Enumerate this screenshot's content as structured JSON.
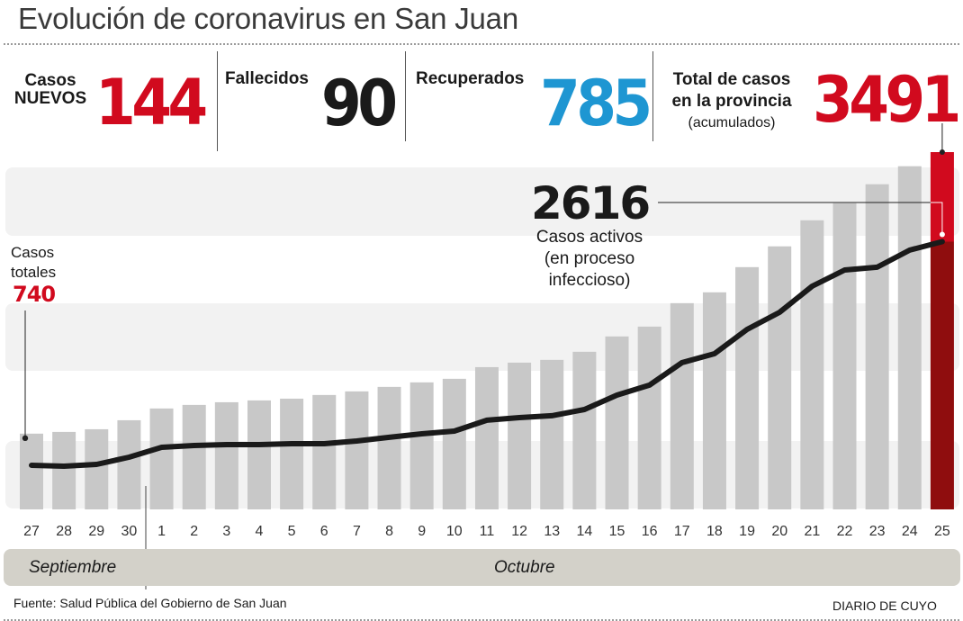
{
  "title": "Evolución de coronavirus en San Juan",
  "kpis": {
    "nuevos": {
      "label_line1": "Casos",
      "label_line2": "NUEVOS",
      "value": "144",
      "color": "#d10a1e"
    },
    "fallecidos": {
      "label": "Fallecidos",
      "value": "90",
      "color": "#1a1a1a"
    },
    "recuperados": {
      "label": "Recuperados",
      "value": "785",
      "color": "#1e96d2"
    },
    "total": {
      "label_line1": "Total de casos",
      "label_line2": "en la provincia",
      "label_line3": "(acumulados)",
      "value": "3491",
      "color": "#d10a1e"
    }
  },
  "annotations": {
    "first_total": {
      "line1": "Casos",
      "line2": "totales",
      "value": "740"
    },
    "active": {
      "value": "2616",
      "line1": "Casos activos",
      "line2": "(en proceso",
      "line3": "infeccioso)"
    }
  },
  "months": {
    "sept": "Septiembre",
    "oct": "Octubre"
  },
  "footer": {
    "source": "Fuente: Salud Pública del Gobierno de San Juan",
    "brand": "DIARIO DE CUYO"
  },
  "colors": {
    "bar": "#c8c8c8",
    "highlight_bar_top": "#d10a1e",
    "highlight_bar_bottom": "#8f0d0e",
    "line": "#1a1a1a",
    "band": "#f2f2f2"
  },
  "chart_data": {
    "type": "bar",
    "title": "Evolución de coronavirus en San Juan",
    "xlabel": "",
    "ylabel": "",
    "grid": false,
    "legend": "none",
    "ylim": [
      0,
      3491
    ],
    "categories": [
      "27",
      "28",
      "29",
      "30",
      "1",
      "2",
      "3",
      "4",
      "5",
      "6",
      "7",
      "8",
      "9",
      "10",
      "11",
      "12",
      "13",
      "14",
      "15",
      "16",
      "17",
      "18",
      "19",
      "20",
      "21",
      "22",
      "23",
      "24",
      "25"
    ],
    "series": [
      {
        "name": "Casos totales",
        "type": "bar",
        "values": [
          740,
          757,
          783,
          871,
          986,
          1021,
          1047,
          1065,
          1082,
          1118,
          1153,
          1197,
          1241,
          1276,
          1390,
          1434,
          1461,
          1540,
          1690,
          1786,
          2015,
          2121,
          2367,
          2570,
          2825,
          2992,
          3177,
          3353,
          3491
        ]
      },
      {
        "name": "Casos activos",
        "type": "line",
        "values": [
          431,
          422,
          440,
          510,
          607,
          624,
          633,
          633,
          642,
          642,
          668,
          704,
          739,
          765,
          871,
          897,
          915,
          976,
          1117,
          1214,
          1434,
          1521,
          1759,
          1926,
          2181,
          2339,
          2366,
          2533,
          2616
        ]
      }
    ],
    "month_groups": [
      {
        "label": "Septiembre",
        "from": "27",
        "to": "30"
      },
      {
        "label": "Octubre",
        "from": "1",
        "to": "25"
      }
    ],
    "annotations": [
      {
        "category": "27",
        "series": "Casos totales",
        "text": "Casos totales 740"
      },
      {
        "category": "25",
        "series": "Casos activos",
        "text": "2616 Casos activos (en proceso infeccioso)"
      },
      {
        "category": "25",
        "series": "Casos totales",
        "text": "Total de casos en la provincia (acumulados) 3491"
      }
    ]
  }
}
